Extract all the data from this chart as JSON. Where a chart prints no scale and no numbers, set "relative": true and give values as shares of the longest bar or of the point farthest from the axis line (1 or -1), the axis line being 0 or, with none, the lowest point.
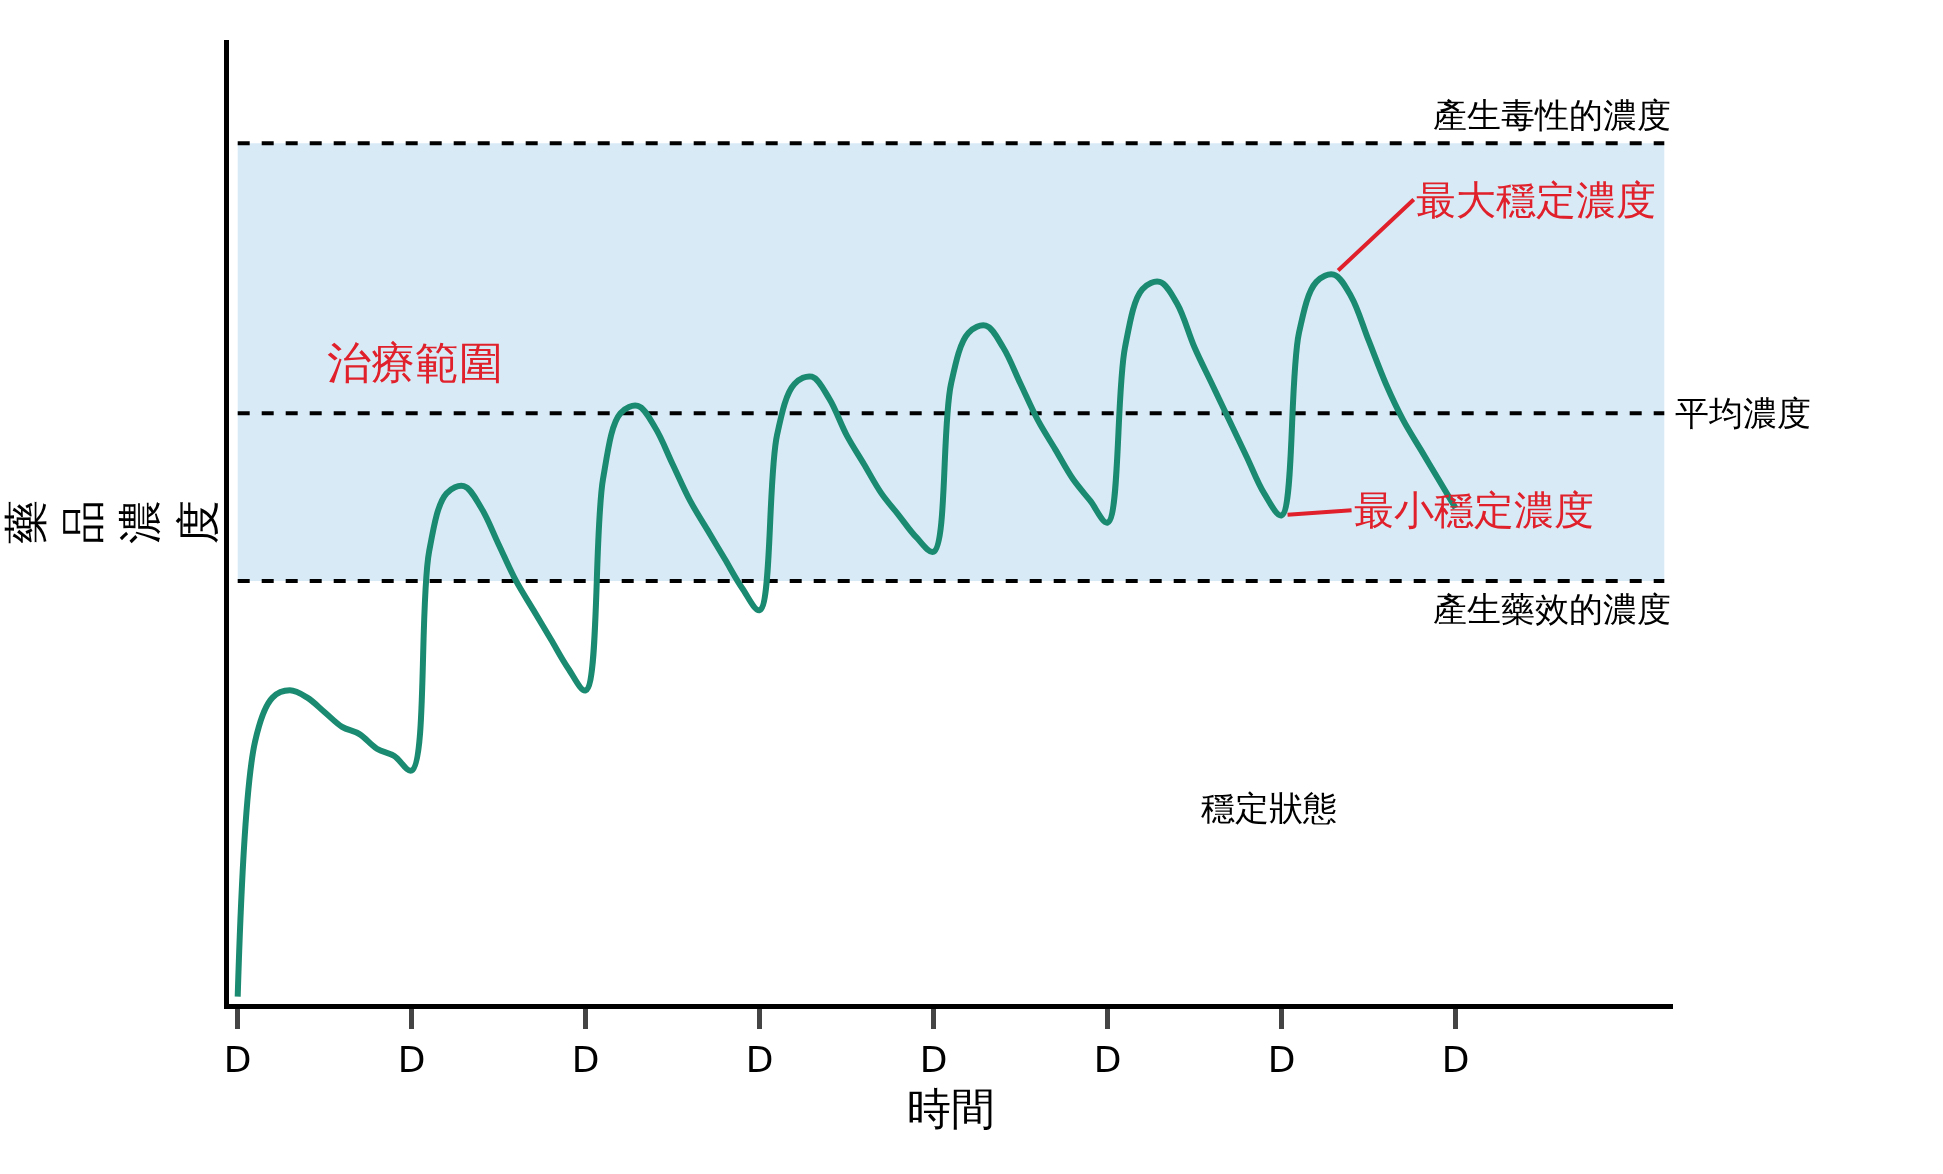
{
  "chart_data": {
    "type": "line",
    "relative": true,
    "xlabel": "時間",
    "ylabel": "藥品濃度",
    "categories": [
      "D",
      null,
      null,
      null,
      null,
      null,
      null,
      null,
      null,
      null,
      "D",
      null,
      null,
      null,
      null,
      null,
      null,
      null,
      null,
      null,
      "D",
      null,
      null,
      null,
      null,
      null,
      null,
      null,
      null,
      null,
      "D",
      null,
      null,
      null,
      null,
      null,
      null,
      null,
      null,
      null,
      "D",
      null,
      null,
      null,
      null,
      null,
      null,
      null,
      null,
      null,
      "D",
      null,
      null,
      null,
      null,
      null,
      null,
      null,
      null,
      null,
      "D",
      null,
      null,
      null,
      null,
      null,
      null,
      null,
      null,
      null,
      "D",
      null,
      null,
      null,
      null,
      null,
      null,
      null,
      null,
      null,
      null,
      null,
      null
    ],
    "series": [
      {
        "color": "#1a8a70",
        "values": [
          0.01,
          0.36,
          0.42,
          0.43,
          0.42,
          0.4,
          0.38,
          0.37,
          0.35,
          0.34,
          0.32,
          0.62,
          0.7,
          0.71,
          0.68,
          0.63,
          0.58,
          0.54,
          0.5,
          0.46,
          0.43,
          0.72,
          0.81,
          0.82,
          0.79,
          0.74,
          0.69,
          0.65,
          0.61,
          0.57,
          0.54,
          0.78,
          0.85,
          0.86,
          0.83,
          0.78,
          0.74,
          0.7,
          0.67,
          0.64,
          0.62,
          0.85,
          0.92,
          0.93,
          0.9,
          0.85,
          0.8,
          0.76,
          0.72,
          0.69,
          0.66,
          0.9,
          0.98,
          0.99,
          0.96,
          0.9,
          0.85,
          0.8,
          0.75,
          0.7,
          0.67,
          0.92,
          0.99,
          1.0,
          0.97,
          0.91,
          0.85,
          0.8,
          0.76,
          0.72,
          0.68,
          null,
          null,
          null,
          null,
          null,
          null,
          null,
          null,
          null,
          null,
          null,
          null
        ]
      }
    ],
    "ref_lines": [
      {
        "axis": "y",
        "value": 1.18,
        "label": "產生毒性的濃度",
        "line_style": "dashed",
        "color": "#000000"
      },
      {
        "axis": "y",
        "value": 0.58,
        "label": "產生藥效的濃度",
        "line_style": "dashed",
        "color": "#000000"
      },
      {
        "axis": "y",
        "value": 0.81,
        "label": "平均濃度",
        "line_style": "dashed",
        "color": "#000000"
      }
    ],
    "bands": [
      {
        "axis": "y",
        "from": 0.58,
        "to": 1.18,
        "label": "治療範圍",
        "color": "#d8eaf6"
      }
    ],
    "annotations": [
      "最大穩定濃度",
      "最小穩定濃度",
      "穩定狀態"
    ],
    "marker": "none",
    "line_style": "solid"
  }
}
